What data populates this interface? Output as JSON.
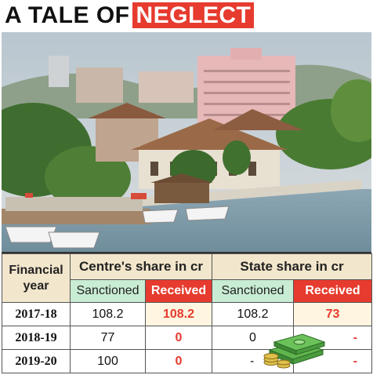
{
  "headline": {
    "part1": "A TALE OF",
    "part2": "NEGLECT"
  },
  "photo": {
    "subject": "waterfront city with boats and buildings"
  },
  "table": {
    "col_fy": "Financial year",
    "group_centre": "Centre's share in cr",
    "group_state": "State share in cr",
    "sub_sanctioned": "Sanctioned",
    "sub_received": "Received",
    "rows": [
      {
        "year": "2017-18",
        "c_sanc": "108.2",
        "c_recv": "108.2",
        "s_sanc": "108.2",
        "s_recv": "73"
      },
      {
        "year": "2018-19",
        "c_sanc": "77",
        "c_recv": "0",
        "s_sanc": "0",
        "s_recv": "-"
      },
      {
        "year": "2019-20",
        "c_sanc": "100",
        "c_recv": "0",
        "s_sanc": "-",
        "s_recv": "-"
      }
    ]
  },
  "colors": {
    "accent_red": "#e63b2e",
    "header_beige": "#f2e6cc",
    "sanctioned_green": "#c9ecd4"
  },
  "icons": [
    "money-stack-icon"
  ]
}
